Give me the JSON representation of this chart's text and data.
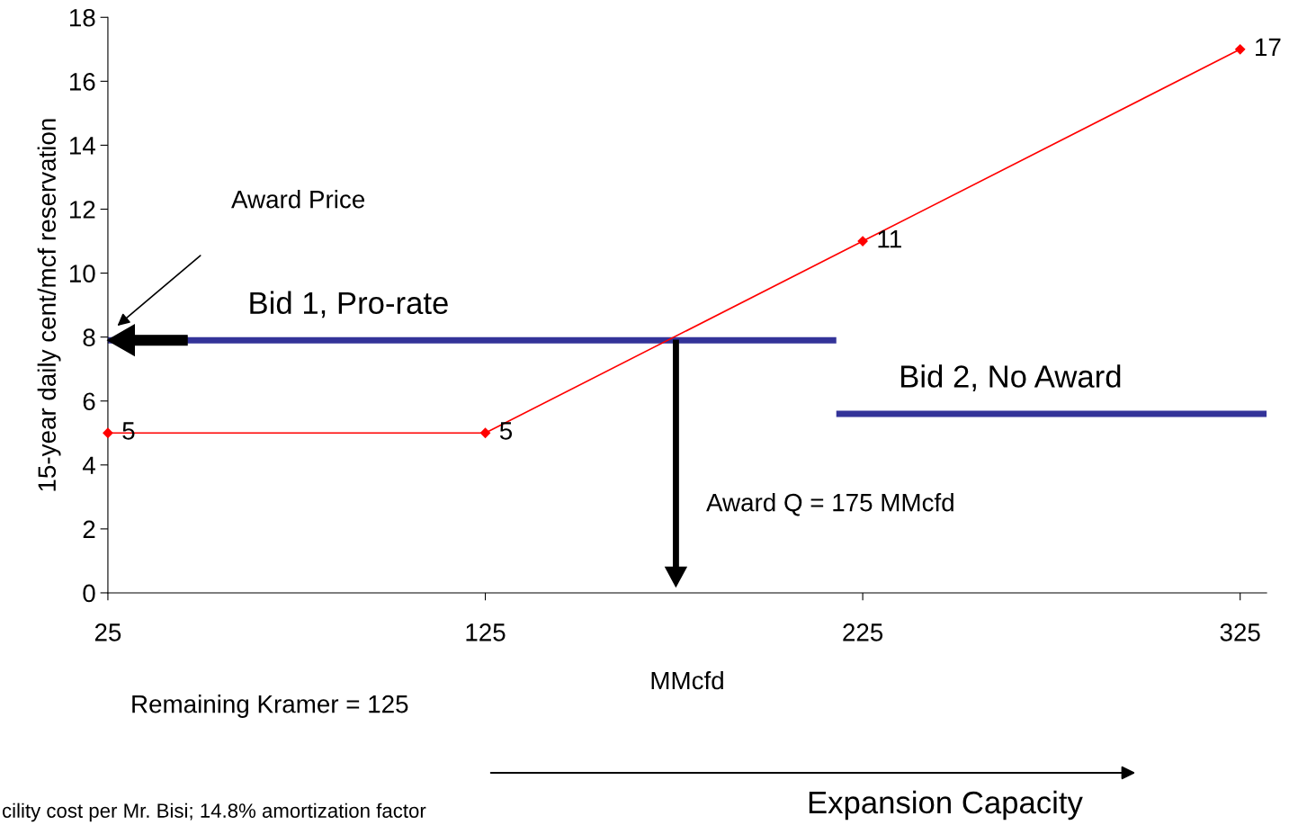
{
  "chart_data": {
    "type": "line",
    "xlabel": "MMcfd",
    "ylabel": "15-year daily cent/mcf reservation",
    "xlim": [
      25,
      332
    ],
    "xticks": [
      25,
      125,
      225,
      325
    ],
    "ylim": [
      0,
      18
    ],
    "yticks": [
      0,
      2,
      4,
      6,
      8,
      10,
      12,
      14,
      16,
      18
    ],
    "grid": false,
    "legend": false,
    "series": [
      {
        "color": "#ff0000",
        "x": [
          25,
          125,
          225,
          325
        ],
        "values": [
          5,
          5,
          11,
          17
        ],
        "marker": "diamond",
        "value_labels": [
          "5",
          "5",
          "11",
          "17"
        ]
      },
      {
        "name": "Bid 1, Pro-rate",
        "color": "#333399",
        "x": [
          25,
          218
        ],
        "values": [
          7.9,
          7.9
        ],
        "marker": "none"
      },
      {
        "name": "Bid 2, No Award",
        "color": "#333399",
        "x": [
          218,
          332
        ],
        "values": [
          5.6,
          5.6
        ],
        "marker": "none"
      }
    ],
    "annotations": [
      "Award Price",
      "Award Q = 175 MMcfd",
      "Remaining Kramer = 125",
      "Expansion Capacity",
      "cility cost per Mr. Bisi; 14.8% amortization factor"
    ]
  }
}
